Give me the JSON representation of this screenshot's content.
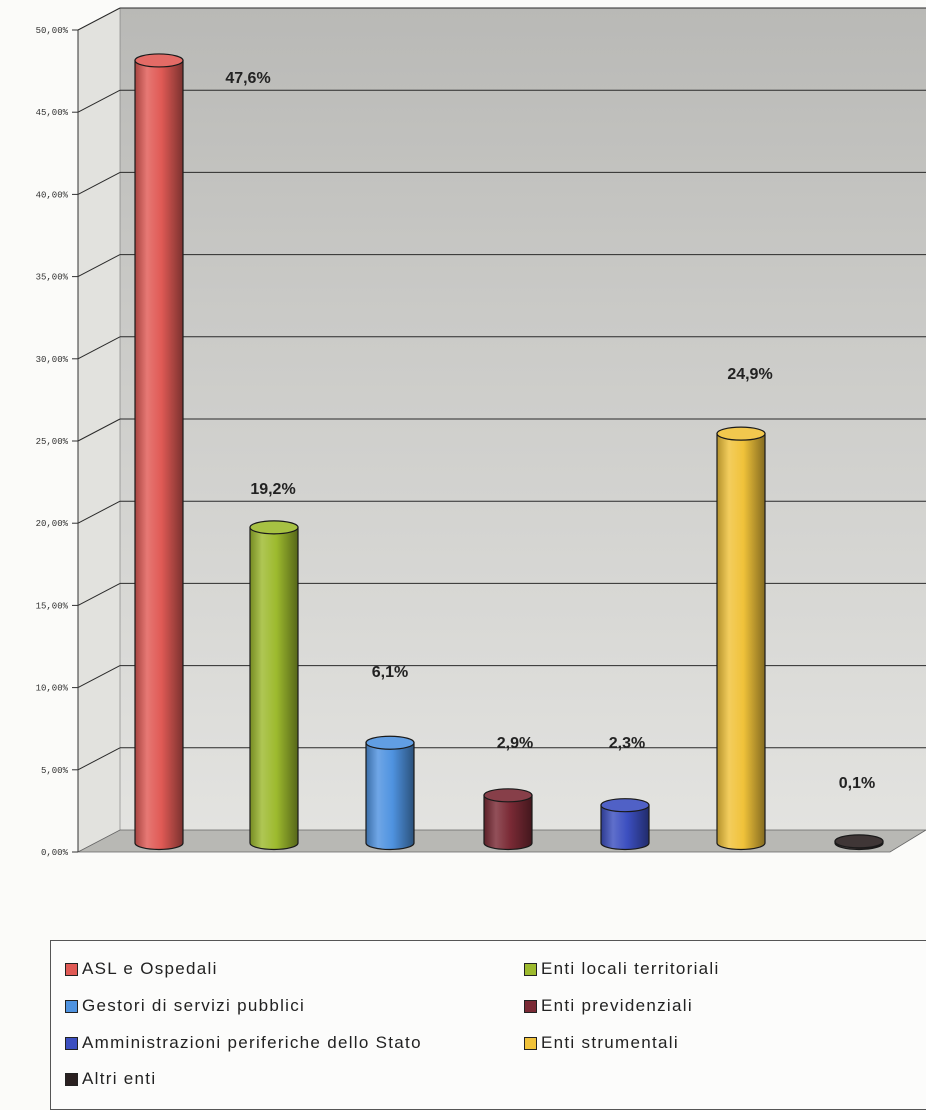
{
  "chart_data": {
    "type": "bar",
    "title": "",
    "xlabel": "",
    "ylabel": "",
    "ylim": [
      0,
      50
    ],
    "y_ticks": [
      "0,00%",
      "5,00%",
      "10,00%",
      "15,00%",
      "20,00%",
      "25,00%",
      "30,00%",
      "35,00%",
      "40,00%",
      "45,00%",
      "50,00%"
    ],
    "grid": true,
    "legend_position": "bottom",
    "series": [
      {
        "name": "ASL e Ospedali",
        "value": 47.6,
        "label": "47,6%",
        "color": "#e05a55"
      },
      {
        "name": "Enti locali territoriali",
        "value": 19.2,
        "label": "19,2%",
        "color": "#9dba2e"
      },
      {
        "name": "Gestori di servizi pubblici",
        "value": 6.1,
        "label": "6,1%",
        "color": "#4f93e0"
      },
      {
        "name": "Enti previdenziali",
        "value": 2.9,
        "label": "2,9%",
        "color": "#7a2a35"
      },
      {
        "name": "Amministrazioni periferiche dello Stato",
        "value": 2.3,
        "label": "2,3%",
        "color": "#3c4fc0"
      },
      {
        "name": "Enti strumentali",
        "value": 24.9,
        "label": "24,9%",
        "color": "#f0c23a"
      },
      {
        "name": "Altri enti",
        "value": 0.1,
        "label": "0,1%",
        "color": "#2a2020"
      }
    ]
  }
}
